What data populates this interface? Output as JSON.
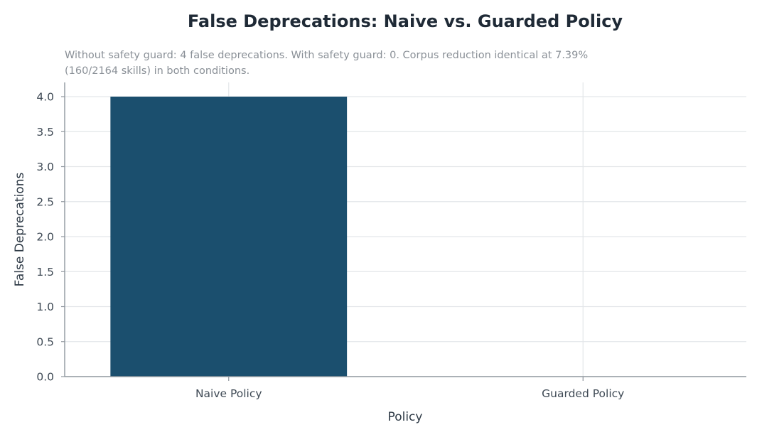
{
  "chart_data": {
    "type": "bar",
    "title": "False Deprecations: Naive vs. Guarded Policy",
    "subtitle_lines": [
      "Without safety guard: 4 false deprecations. With safety guard: 0. Corpus reduction identical at 7.39%",
      "(160/2164 skills) in both conditions."
    ],
    "xlabel": "Policy",
    "ylabel": "False Deprecations",
    "categories": [
      "Naive Policy",
      "Guarded Policy"
    ],
    "values": [
      4,
      0
    ],
    "ylim": [
      0,
      4
    ],
    "yticks": [
      "0.0",
      "0.5",
      "1.0",
      "1.5",
      "2.0",
      "2.5",
      "3.0",
      "3.5",
      "4.0"
    ],
    "grid": true,
    "legend": "none",
    "bar_color": "#1b4f6e"
  }
}
